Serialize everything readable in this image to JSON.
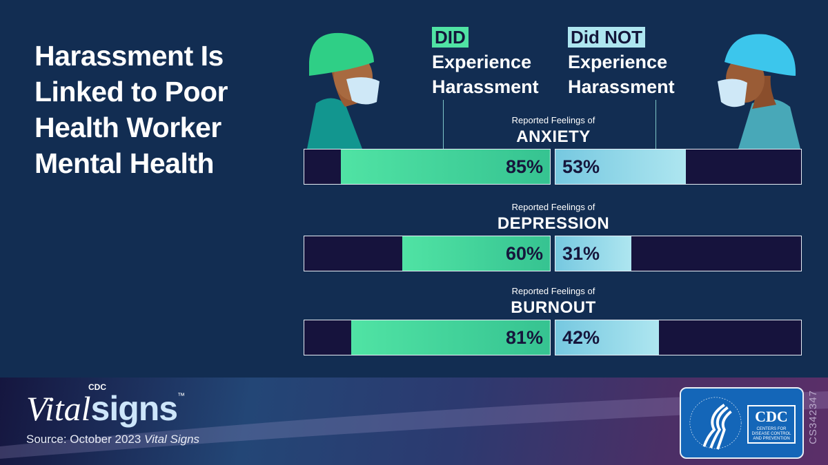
{
  "title": "Harassment Is Linked to Poor Health Worker Mental Health",
  "legend": {
    "did": {
      "tag": "DID",
      "text1": "Experience",
      "text2": "Harassment",
      "color": "#50e3a4"
    },
    "did_not": {
      "tag": "Did NOT",
      "text1": "Experience",
      "text2": "Harassment",
      "color": "#aee6f0"
    }
  },
  "chart_data": {
    "type": "bar",
    "orientation": "horizontal-diverging",
    "categories": [
      "ANXIETY",
      "DEPRESSION",
      "BURNOUT"
    ],
    "category_prefix": "Reported Feelings of",
    "series": [
      {
        "name": "DID Experience Harassment",
        "values": [
          85,
          60,
          81
        ],
        "labels": [
          "85%",
          "60%",
          "81%"
        ],
        "color": "#50e3a4"
      },
      {
        "name": "Did NOT Experience Harassment",
        "values": [
          53,
          31,
          42
        ],
        "labels": [
          "53%",
          "31%",
          "42%"
        ],
        "color": "#aee6f0"
      }
    ],
    "xlim": [
      0,
      100
    ],
    "unit": "%"
  },
  "footer": {
    "logo_cdc": "CDC",
    "logo_vital": "Vital",
    "logo_signs": "signs",
    "logo_tm": "™",
    "source_prefix": "Source: October 2023 ",
    "source_italic": "Vital Signs",
    "hhs_seal": "DEPARTMENT OF HEALTH & HUMAN SERVICES USA",
    "cdc_badge": "CDC",
    "cdc_badge_sub": "CENTERS FOR DISEASE CONTROL AND PREVENTION",
    "code": "CS342347"
  },
  "colors": {
    "background": "#122d52",
    "bar_track": "#16133d"
  }
}
